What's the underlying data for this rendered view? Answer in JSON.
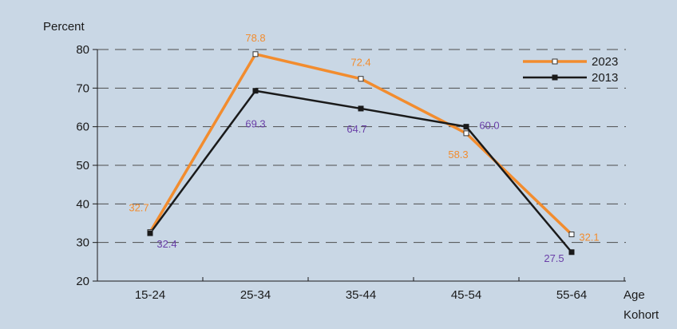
{
  "chart_data": {
    "type": "line",
    "title": "",
    "ylabel": "Percent",
    "xlabel": [
      "Age",
      "Kohort"
    ],
    "categories": [
      "15-24",
      "25-34",
      "35-44",
      "45-54",
      "55-64"
    ],
    "ylim": [
      20,
      80
    ],
    "yticks": [
      20,
      30,
      40,
      50,
      60,
      70,
      80
    ],
    "grid": true,
    "legend_position": "top-right",
    "series": [
      {
        "name": "2023",
        "values": [
          32.7,
          78.8,
          72.4,
          58.3,
          32.1
        ],
        "labels": [
          "32.7",
          "78.8",
          "72.4",
          "58.3",
          "32.1"
        ],
        "color": "#F28C2E",
        "label_color": "#F28C2E",
        "marker": "open-square"
      },
      {
        "name": "2013",
        "values": [
          32.4,
          69.3,
          64.7,
          60.0,
          27.5
        ],
        "labels": [
          "32.4",
          "69.3",
          "64.7",
          "60.0",
          "27.5"
        ],
        "color": "#1a1a1a",
        "label_color": "#6A3FA8",
        "marker": "filled-square"
      }
    ]
  },
  "colors": {
    "background": "#C9D7E5",
    "grid": "#4d4d4d",
    "axis": "#1a1a1a"
  }
}
